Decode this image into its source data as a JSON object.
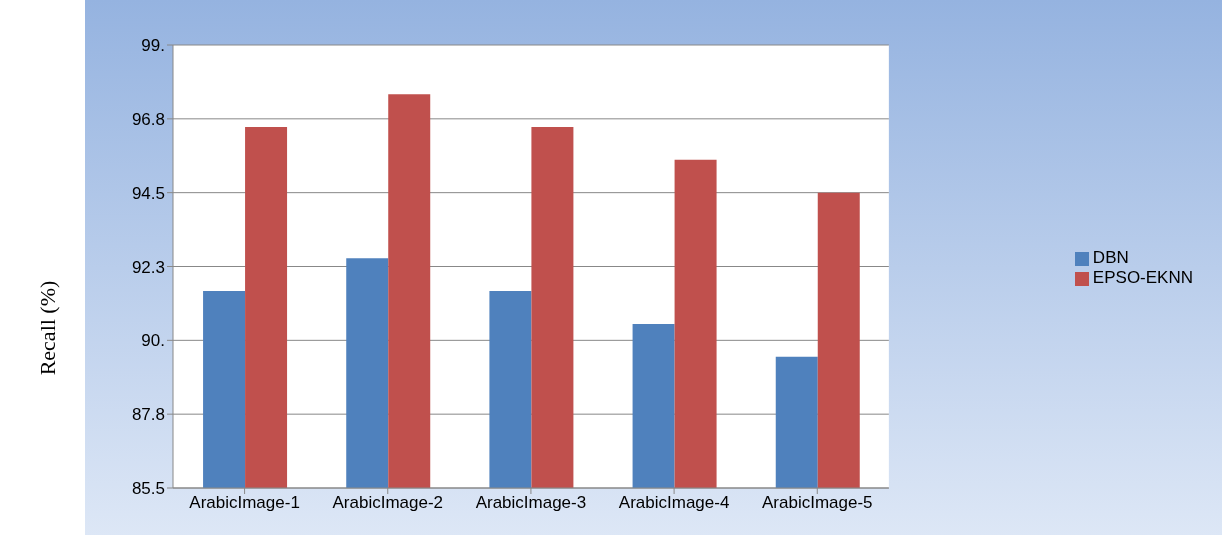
{
  "chart_data": {
    "type": "bar",
    "ylabel": "Recall (%)",
    "categories": [
      "ArabicImage-1",
      "ArabicImage-2",
      "ArabicImage-3",
      "ArabicImage-4",
      "ArabicImage-5"
    ],
    "series": [
      {
        "name": "DBN",
        "color": "#4f81bd",
        "values": [
          91.5,
          92.5,
          91.5,
          90.5,
          89.5
        ]
      },
      {
        "name": "EPSO-EKNN",
        "color": "#c0504d",
        "values": [
          96.5,
          97.5,
          96.5,
          95.5,
          94.5
        ]
      }
    ],
    "ylim": [
      85.5,
      99
    ],
    "yticks": [
      85.5,
      {
        "value": 87.75,
        "label": "87.8"
      },
      {
        "value": 90,
        "label": "90."
      },
      {
        "value": 92.25,
        "label": "92.3"
      },
      94.5,
      {
        "value": 96.75,
        "label": "96.8"
      },
      {
        "value": 99,
        "label": "99."
      }
    ],
    "grid": "y",
    "legend": "right"
  }
}
